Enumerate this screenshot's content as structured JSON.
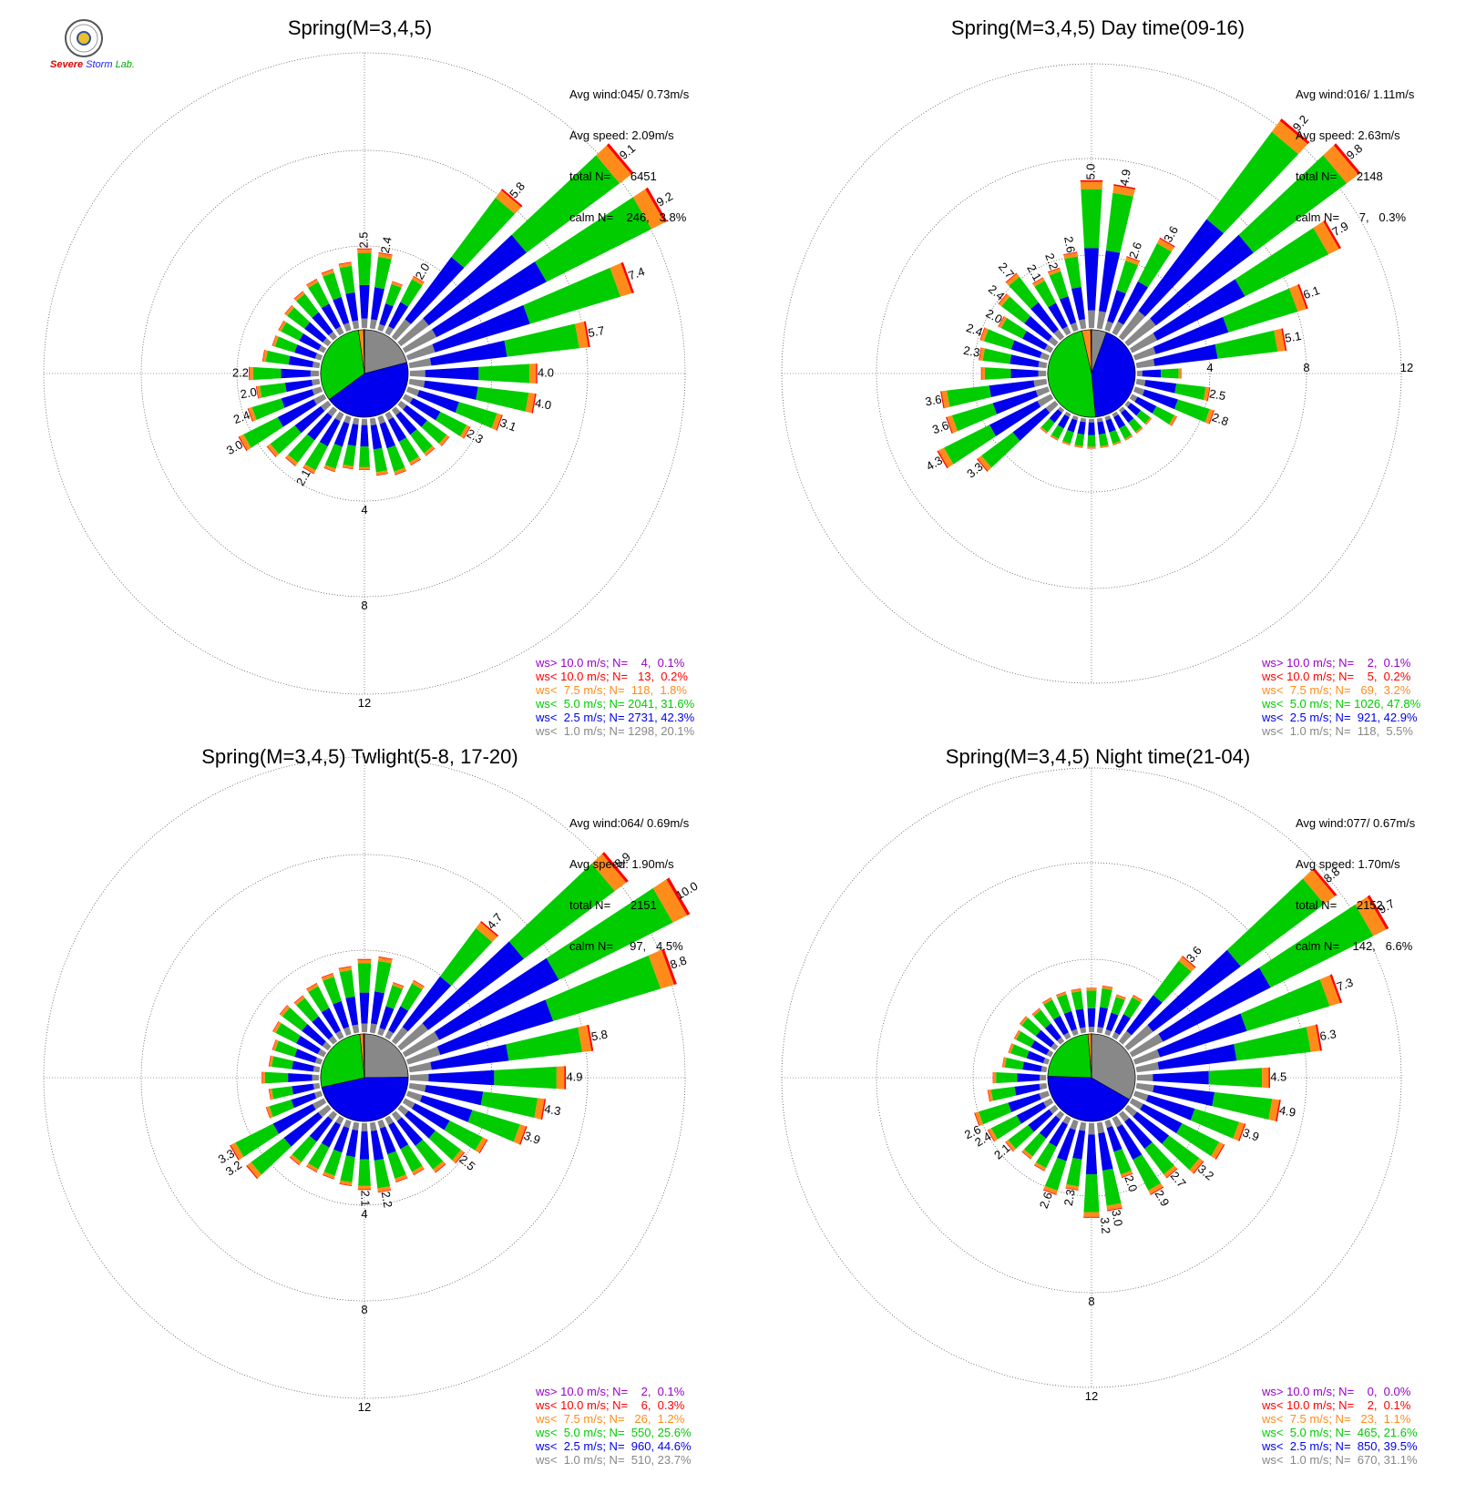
{
  "logo": {
    "line1": "Severe",
    "line2": "Storm",
    "line3": "Lab."
  },
  "colors": {
    "gt10": "#9900cc",
    "lt10": "#ff0000",
    "lt75": "#ff8c1a",
    "lt5": "#00cc00",
    "lt25": "#0000ee",
    "lt1": "#888888",
    "axis": "#000000"
  },
  "chart_data": [
    {
      "type": "wind-rose",
      "title": "Spring(M=3,4,5)",
      "stats": {
        "avg_wind": "Avg wind:045/ 0.73m/s",
        "avg_speed": "Avg speed: 2.09m/s",
        "total": "total N=      6451",
        "calm": "calm N=    246,   3.8%"
      },
      "ring_labels": [
        "4",
        "8",
        "12"
      ],
      "sector_labels": [
        {
          "dir": 0,
          "value": "2.5"
        },
        {
          "dir": 10,
          "value": "2.4"
        },
        {
          "dir": 30,
          "value": "2.0"
        },
        {
          "dir": 40,
          "value": "5.8"
        },
        {
          "dir": 50,
          "value": "9.1"
        },
        {
          "dir": 60,
          "value": "9.2"
        },
        {
          "dir": 70,
          "value": "7.4"
        },
        {
          "dir": 80,
          "value": "5.7"
        },
        {
          "dir": 90,
          "value": "4.0"
        },
        {
          "dir": 100,
          "value": "4.0"
        },
        {
          "dir": 110,
          "value": "3.1"
        },
        {
          "dir": 120,
          "value": "2.3"
        },
        {
          "dir": 210,
          "value": "2.1"
        },
        {
          "dir": 240,
          "value": "3.0"
        },
        {
          "dir": 250,
          "value": "2.4"
        },
        {
          "dir": 260,
          "value": "2.0"
        },
        {
          "dir": 270,
          "value": "2.2"
        }
      ],
      "sectors": [
        2.5,
        2.4,
        1.6,
        2.0,
        5.8,
        9.1,
        9.2,
        7.4,
        5.7,
        4.0,
        4.0,
        3.1,
        2.3,
        1.9,
        1.8,
        1.8,
        1.9,
        1.8,
        1.6,
        1.6,
        1.8,
        2.1,
        2.2,
        2.4,
        3.0,
        2.4,
        2.0,
        2.2,
        1.8,
        1.6,
        1.6,
        1.7,
        1.8,
        1.9,
        2.0,
        2.1
      ],
      "legend": [
        {
          "text": "ws> 10.0 m/s; N=    4,  0.1%",
          "color": "gt10"
        },
        {
          "text": "ws< 10.0 m/s; N=   13,  0.2%",
          "color": "lt10"
        },
        {
          "text": "ws<  7.5 m/s; N=  118,  1.8%",
          "color": "lt75"
        },
        {
          "text": "ws<  5.0 m/s; N= 2041, 31.6%",
          "color": "lt5"
        },
        {
          "text": "ws<  2.5 m/s; N= 2731, 42.3%",
          "color": "lt25"
        },
        {
          "text": "ws<  1.0 m/s; N= 1298, 20.1%",
          "color": "lt1"
        }
      ],
      "pie": [
        20.1,
        42.3,
        31.6,
        1.8,
        0.2,
        0.1
      ]
    },
    {
      "type": "wind-rose",
      "title": "Spring(M=3,4,5) Day time(09-16)",
      "stats": {
        "avg_wind": "Avg wind:016/ 1.11m/s",
        "avg_speed": "Avg speed: 2.63m/s",
        "total": "total N=      2148",
        "calm": "calm N=      7,   0.3%"
      },
      "ring_labels": [
        "4",
        "8",
        "12"
      ],
      "sector_labels": [
        {
          "dir": 0,
          "value": "5.0"
        },
        {
          "dir": 10,
          "value": "4.9"
        },
        {
          "dir": 20,
          "value": "2.6"
        },
        {
          "dir": 30,
          "value": "3.6"
        },
        {
          "dir": 40,
          "value": "9.2"
        },
        {
          "dir": 50,
          "value": "9.8"
        },
        {
          "dir": 60,
          "value": "7.9"
        },
        {
          "dir": 70,
          "value": "6.1"
        },
        {
          "dir": 80,
          "value": "5.1"
        },
        {
          "dir": 100,
          "value": "2.5"
        },
        {
          "dir": 110,
          "value": "2.8"
        },
        {
          "dir": 240,
          "value": "4.3"
        },
        {
          "dir": 230,
          "value": "3.3"
        },
        {
          "dir": 250,
          "value": "3.6"
        },
        {
          "dir": 260,
          "value": "3.6"
        },
        {
          "dir": 280,
          "value": "2.3"
        },
        {
          "dir": 290,
          "value": "2.4"
        },
        {
          "dir": 300,
          "value": "2.0"
        },
        {
          "dir": 310,
          "value": "2.4"
        },
        {
          "dir": 320,
          "value": "2.7"
        },
        {
          "dir": 330,
          "value": "2.1"
        },
        {
          "dir": 340,
          "value": "2.2"
        },
        {
          "dir": 350,
          "value": "2.6"
        }
      ],
      "sectors": [
        5.0,
        4.9,
        2.6,
        3.6,
        9.2,
        9.8,
        7.9,
        6.1,
        5.1,
        1.5,
        2.5,
        2.8,
        1.7,
        1.0,
        1.0,
        1.0,
        1.0,
        1.0,
        1.0,
        1.0,
        1.0,
        1.0,
        1.0,
        3.3,
        4.3,
        3.6,
        3.6,
        2.2,
        2.3,
        2.4,
        2.0,
        2.4,
        2.7,
        2.1,
        2.2,
        2.6
      ],
      "legend": [
        {
          "text": "ws> 10.0 m/s; N=    2,  0.1%",
          "color": "gt10"
        },
        {
          "text": "ws< 10.0 m/s; N=    5,  0.2%",
          "color": "lt10"
        },
        {
          "text": "ws<  7.5 m/s; N=   69,  3.2%",
          "color": "lt75"
        },
        {
          "text": "ws<  5.0 m/s; N= 1026, 47.8%",
          "color": "lt5"
        },
        {
          "text": "ws<  2.5 m/s; N=  921, 42.9%",
          "color": "lt25"
        },
        {
          "text": "ws<  1.0 m/s; N=  118,  5.5%",
          "color": "lt1"
        }
      ],
      "pie": [
        5.5,
        42.9,
        47.8,
        3.2,
        0.2,
        0.1
      ]
    },
    {
      "type": "wind-rose",
      "title": "Spring(M=3,4,5) Twlight(5-8, 17-20)",
      "stats": {
        "avg_wind": "Avg wind:064/ 0.69m/s",
        "avg_speed": "Avg speed: 1.90m/s",
        "total": "total N=      2151",
        "calm": "calm N=     97,   4.5%"
      },
      "ring_labels": [
        "4",
        "8",
        "12"
      ],
      "sector_labels": [
        {
          "dir": 40,
          "value": "4.7"
        },
        {
          "dir": 50,
          "value": "8.9"
        },
        {
          "dir": 60,
          "value": "10.0"
        },
        {
          "dir": 70,
          "value": "8.8"
        },
        {
          "dir": 80,
          "value": "5.8"
        },
        {
          "dir": 90,
          "value": "4.9"
        },
        {
          "dir": 100,
          "value": "4.3"
        },
        {
          "dir": 110,
          "value": "3.9"
        },
        {
          "dir": 130,
          "value": "2.5"
        },
        {
          "dir": 170,
          "value": "2.2"
        },
        {
          "dir": 180,
          "value": "2.1"
        },
        {
          "dir": 240,
          "value": "3.3"
        },
        {
          "dir": 235,
          "value": "3.2"
        }
      ],
      "sectors": [
        2.3,
        2.4,
        1.7,
        2.0,
        4.7,
        8.9,
        10.0,
        8.8,
        5.8,
        4.9,
        4.3,
        3.9,
        2.9,
        2.5,
        2.3,
        2.0,
        2.0,
        2.2,
        2.1,
        2.0,
        1.9,
        1.9,
        2.0,
        3.2,
        3.3,
        1.8,
        1.6,
        1.8,
        1.6,
        1.6,
        1.8,
        1.9,
        1.8,
        1.9,
        2.0,
        2.1
      ],
      "legend": [
        {
          "text": "ws> 10.0 m/s; N=    2,  0.1%",
          "color": "gt10"
        },
        {
          "text": "ws< 10.0 m/s; N=    6,  0.3%",
          "color": "lt10"
        },
        {
          "text": "ws<  7.5 m/s; N=   26,  1.2%",
          "color": "lt75"
        },
        {
          "text": "ws<  5.0 m/s; N=  550, 25.6%",
          "color": "lt5"
        },
        {
          "text": "ws<  2.5 m/s; N=  960, 44.6%",
          "color": "lt25"
        },
        {
          "text": "ws<  1.0 m/s; N=  510, 23.7%",
          "color": "lt1"
        }
      ],
      "pie": [
        23.7,
        44.6,
        25.6,
        1.2,
        0.3,
        0.1
      ]
    },
    {
      "type": "wind-rose",
      "title": "Spring(M=3,4,5) Night time(21-04)",
      "stats": {
        "avg_wind": "Avg wind:077/ 0.67m/s",
        "avg_speed": "Avg speed: 1.70m/s",
        "total": "total N=      2152",
        "calm": "calm N=    142,   6.6%"
      },
      "ring_labels": [
        "4",
        "8",
        "12"
      ],
      "sector_labels": [
        {
          "dir": 40,
          "value": "3.6"
        },
        {
          "dir": 50,
          "value": "8.8"
        },
        {
          "dir": 60,
          "value": "9.7"
        },
        {
          "dir": 70,
          "value": "7.3"
        },
        {
          "dir": 80,
          "value": "6.3"
        },
        {
          "dir": 90,
          "value": "4.5"
        },
        {
          "dir": 100,
          "value": "4.9"
        },
        {
          "dir": 110,
          "value": "3.9"
        },
        {
          "dir": 130,
          "value": "3.2"
        },
        {
          "dir": 140,
          "value": "2.7"
        },
        {
          "dir": 150,
          "value": "2.9"
        },
        {
          "dir": 160,
          "value": "2.0"
        },
        {
          "dir": 170,
          "value": "3.0"
        },
        {
          "dir": 175,
          "value": "3.2"
        },
        {
          "dir": 190,
          "value": "2.3"
        },
        {
          "dir": 200,
          "value": "2.6"
        },
        {
          "dir": 230,
          "value": "2.1"
        },
        {
          "dir": 240,
          "value": "2.4"
        },
        {
          "dir": 245,
          "value": "2.6"
        }
      ],
      "sectors": [
        1.5,
        1.6,
        1.4,
        1.6,
        3.6,
        8.8,
        9.7,
        7.3,
        6.3,
        4.5,
        4.9,
        3.9,
        3.5,
        3.2,
        2.7,
        2.9,
        2.0,
        3.0,
        3.2,
        2.3,
        2.6,
        2.0,
        1.9,
        2.1,
        2.4,
        2.6,
        2.0,
        1.8,
        1.5,
        1.4,
        1.4,
        1.5,
        1.4,
        1.5,
        1.5,
        1.5
      ],
      "legend": [
        {
          "text": "ws> 10.0 m/s; N=    0,  0.0%",
          "color": "gt10"
        },
        {
          "text": "ws< 10.0 m/s; N=    2,  0.1%",
          "color": "lt10"
        },
        {
          "text": "ws<  7.5 m/s; N=   23,  1.1%",
          "color": "lt75"
        },
        {
          "text": "ws<  5.0 m/s; N=  465, 21.6%",
          "color": "lt5"
        },
        {
          "text": "ws<  2.5 m/s; N=  850, 39.5%",
          "color": "lt25"
        },
        {
          "text": "ws<  1.0 m/s; N=  670, 31.1%",
          "color": "lt1"
        }
      ],
      "pie": [
        31.1,
        39.5,
        21.6,
        1.1,
        0.1,
        0.0
      ]
    }
  ]
}
